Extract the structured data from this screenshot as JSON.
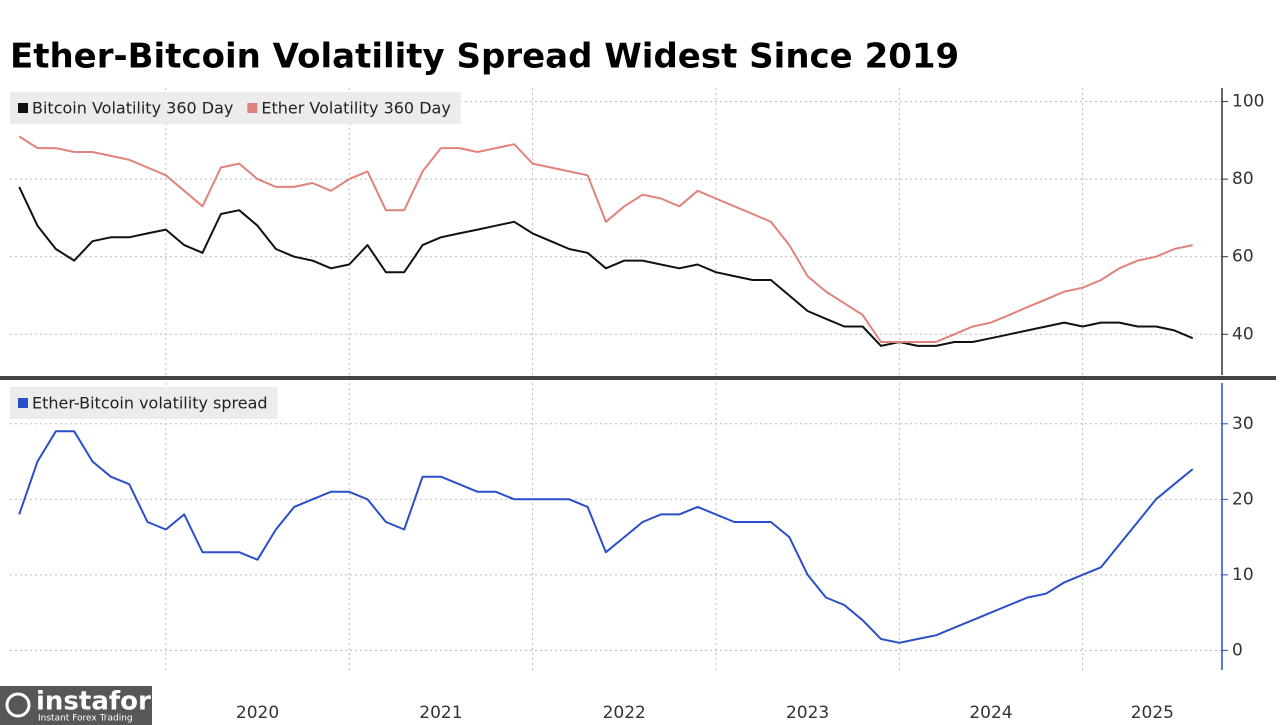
{
  "chart_data": [
    {
      "type": "line",
      "title": "Ether-Bitcoin Volatility Spread Widest Since 2019",
      "x": [
        2019.2,
        2019.3,
        2019.4,
        2019.5,
        2019.6,
        2019.7,
        2019.8,
        2019.9,
        2020.0,
        2020.1,
        2020.2,
        2020.3,
        2020.4,
        2020.5,
        2020.6,
        2020.7,
        2020.8,
        2020.9,
        2021.0,
        2021.1,
        2021.2,
        2021.3,
        2021.4,
        2021.5,
        2021.6,
        2021.7,
        2021.8,
        2021.9,
        2022.0,
        2022.1,
        2022.2,
        2022.3,
        2022.4,
        2022.5,
        2022.6,
        2022.7,
        2022.8,
        2022.9,
        2023.0,
        2023.1,
        2023.2,
        2023.3,
        2023.4,
        2023.5,
        2023.6,
        2023.7,
        2023.8,
        2023.9,
        2024.0,
        2024.1,
        2024.2,
        2024.3,
        2024.4,
        2024.5,
        2024.6,
        2024.7,
        2024.8,
        2024.9,
        2025.0,
        2025.1,
        2025.2,
        2025.3,
        2025.4,
        2025.5,
        2025.6
      ],
      "xlim": [
        2019.15,
        2025.76
      ],
      "ylim": [
        29.5,
        103.5
      ],
      "yticks": [
        40,
        60,
        80,
        100
      ],
      "grid": true,
      "series": [
        {
          "name": "Bitcoin Volatility 360 Day",
          "color": "#111111",
          "values": [
            78,
            68,
            62,
            59,
            64,
            65,
            65,
            66,
            67,
            63,
            61,
            71,
            72,
            68,
            62,
            60,
            59,
            57,
            58,
            63,
            56,
            56,
            63,
            65,
            66,
            67,
            68,
            69,
            66,
            64,
            62,
            61,
            57,
            59,
            59,
            58,
            57,
            58,
            56,
            55,
            54,
            54,
            50,
            46,
            44,
            42,
            42,
            37,
            38,
            37,
            37,
            38,
            38,
            39,
            40,
            41,
            42,
            43,
            42,
            43,
            43,
            42,
            42,
            41,
            39
          ]
        },
        {
          "name": "Ether Volatility 360 Day",
          "color": "#e0837c",
          "values": [
            91,
            88,
            88,
            87,
            87,
            86,
            85,
            83,
            81,
            77,
            73,
            83,
            84,
            80,
            78,
            78,
            79,
            77,
            80,
            82,
            72,
            72,
            82,
            88,
            88,
            87,
            88,
            89,
            84,
            83,
            82,
            81,
            69,
            73,
            76,
            75,
            73,
            77,
            75,
            73,
            71,
            69,
            63,
            55,
            51,
            48,
            45,
            38,
            38,
            38,
            38,
            40,
            42,
            43,
            45,
            47,
            49,
            51,
            52,
            54,
            57,
            59,
            60,
            62,
            63
          ]
        }
      ]
    },
    {
      "type": "line",
      "x": [
        2019.2,
        2019.3,
        2019.4,
        2019.5,
        2019.6,
        2019.7,
        2019.8,
        2019.9,
        2020.0,
        2020.1,
        2020.2,
        2020.3,
        2020.4,
        2020.5,
        2020.6,
        2020.7,
        2020.8,
        2020.9,
        2021.0,
        2021.1,
        2021.2,
        2021.3,
        2021.4,
        2021.5,
        2021.6,
        2021.7,
        2021.8,
        2021.9,
        2022.0,
        2022.1,
        2022.2,
        2022.3,
        2022.4,
        2022.5,
        2022.6,
        2022.7,
        2022.8,
        2022.9,
        2023.0,
        2023.1,
        2023.2,
        2023.3,
        2023.4,
        2023.5,
        2023.6,
        2023.7,
        2023.8,
        2023.9,
        2024.0,
        2024.1,
        2024.2,
        2024.3,
        2024.4,
        2024.5,
        2024.6,
        2024.7,
        2024.8,
        2024.9,
        2025.0,
        2025.1,
        2025.2,
        2025.3,
        2025.4,
        2025.5,
        2025.6
      ],
      "xlim": [
        2019.15,
        2025.76
      ],
      "xticks": [
        2020,
        2021,
        2022,
        2023,
        2024,
        2025
      ],
      "ylim": [
        -2.6,
        35.4
      ],
      "yticks": [
        0,
        10,
        20,
        30
      ],
      "grid": true,
      "series": [
        {
          "name": "Ether-Bitcoin volatility spread",
          "color": "#2a4fc9",
          "values": [
            18,
            25,
            29,
            29,
            25,
            23,
            22,
            17,
            16,
            18,
            13,
            13,
            13,
            12,
            16,
            19,
            20,
            21,
            21,
            20,
            17,
            16,
            23,
            23,
            22,
            21,
            21,
            20,
            20,
            20,
            20,
            19,
            13,
            15,
            17,
            18,
            18,
            19,
            18,
            17,
            17,
            17,
            15,
            10,
            7,
            6,
            4,
            1.5,
            1,
            1.5,
            2,
            3,
            4,
            5,
            6,
            7,
            7.5,
            9,
            10,
            11,
            14,
            17,
            20,
            22,
            24
          ]
        }
      ]
    }
  ],
  "watermark": {
    "name": "instaforex",
    "tagline": "Instant Forex Trading"
  }
}
